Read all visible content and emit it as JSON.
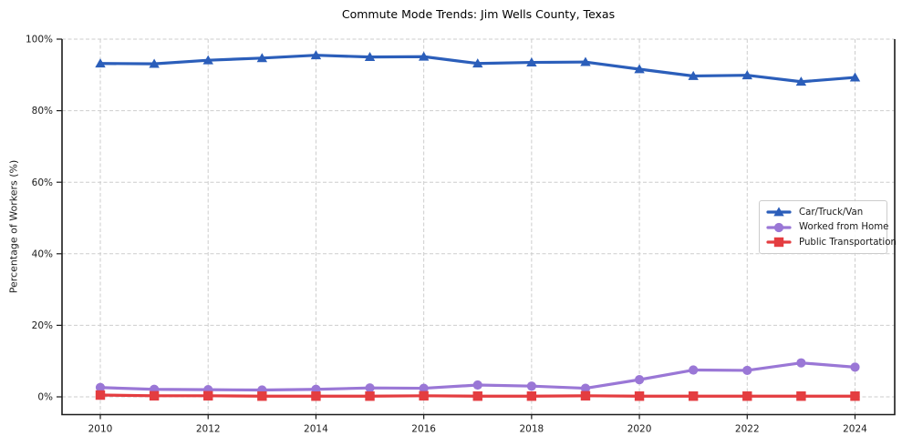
{
  "chart_data": {
    "type": "line",
    "title": "Commute Mode Trends: Jim Wells County, Texas",
    "xlabel": "",
    "ylabel": "Percentage of Workers (%)",
    "x": [
      2010,
      2011,
      2012,
      2013,
      2014,
      2015,
      2016,
      2017,
      2018,
      2019,
      2020,
      2021,
      2022,
      2023,
      2024
    ],
    "x_tick_labels": [
      "2010",
      "2012",
      "2014",
      "2016",
      "2018",
      "2020",
      "2022",
      "2024"
    ],
    "y_ticks": [
      0,
      20,
      40,
      60,
      80,
      100
    ],
    "y_tick_suffix": "%",
    "ylim": [
      -5,
      100
    ],
    "grid": {
      "style": "dashed",
      "color": "#cdcdcd"
    },
    "axis_color": "#1c1c1c",
    "legend_position": "center-right",
    "series": [
      {
        "name": "Car/Truck/Van",
        "color": "#2b5eba",
        "marker": "triangle",
        "values": [
          93.2,
          93.1,
          94.1,
          94.7,
          95.5,
          95.0,
          95.1,
          93.2,
          93.5,
          93.6,
          91.6,
          89.7,
          89.9,
          88.1,
          89.3
        ]
      },
      {
        "name": "Worked from Home",
        "color": "#9a77d6",
        "marker": "circle",
        "values": [
          2.6,
          2.1,
          2.0,
          1.9,
          2.1,
          2.5,
          2.4,
          3.3,
          3.0,
          2.4,
          4.8,
          7.5,
          7.4,
          9.5,
          8.3
        ]
      },
      {
        "name": "Public Transportation",
        "color": "#e43d40",
        "marker": "square",
        "values": [
          0.5,
          0.3,
          0.3,
          0.2,
          0.2,
          0.2,
          0.3,
          0.2,
          0.2,
          0.3,
          0.2,
          0.2,
          0.2,
          0.2,
          0.2
        ]
      }
    ]
  }
}
